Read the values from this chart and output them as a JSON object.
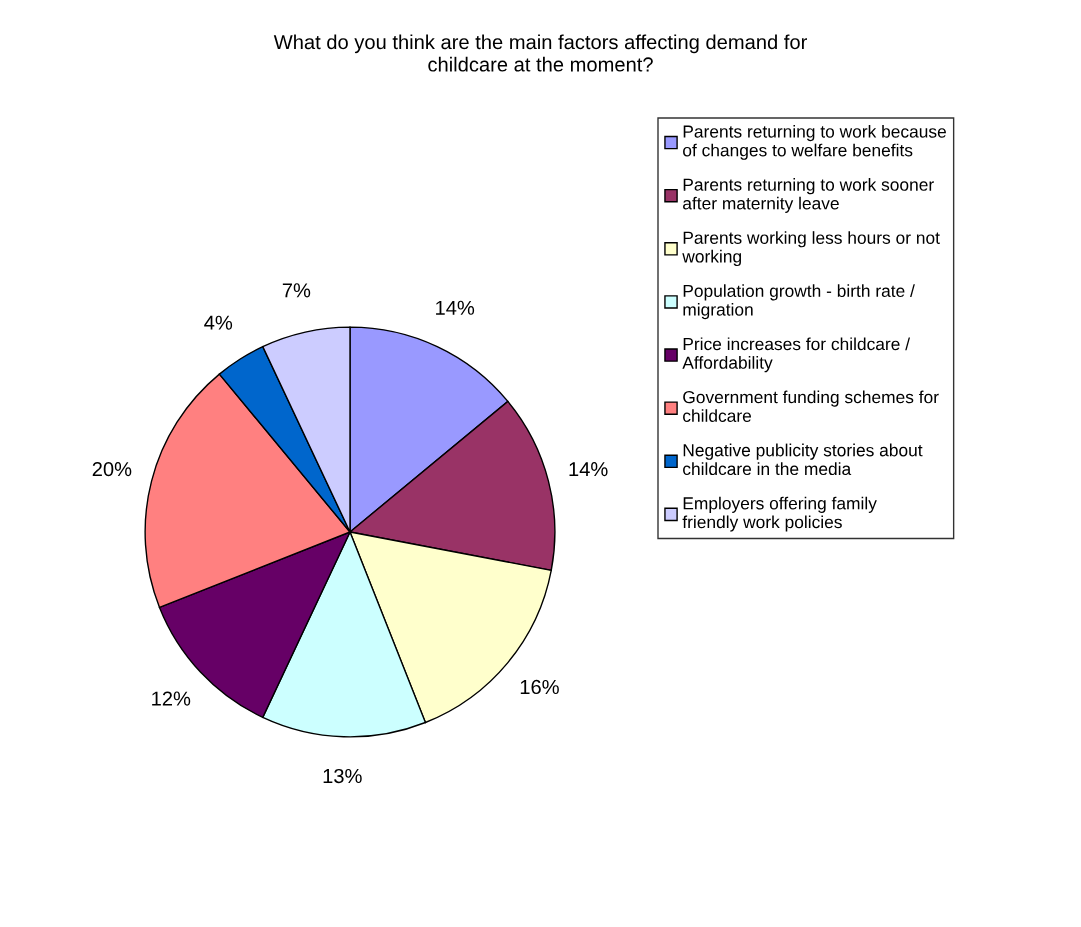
{
  "chart_data": {
    "type": "pie",
    "title": "What do you think are the main factors affecting demand for childcare at the moment?",
    "categories": [
      "Parents returning to work because of changes to welfare benefits",
      "Parents returning to work sooner after maternity leave",
      "Parents working less hours or not working",
      "Population growth - birth rate / migration",
      "Price increases for childcare / Affordability",
      "Government funding schemes for childcare",
      "Negative publicity stories about childcare in the media",
      "Employers offering family friendly work policies"
    ],
    "values": [
      14,
      14,
      16,
      13,
      12,
      20,
      4,
      7
    ],
    "colors": [
      "#9999ff",
      "#993366",
      "#ffffcc",
      "#ccffff",
      "#660066",
      "#ff8080",
      "#0066cc",
      "#ccccff"
    ],
    "value_labels": [
      "14%",
      "14%",
      "16%",
      "13%",
      "12%",
      "20%",
      "4%",
      "7%"
    ],
    "legend": "right"
  }
}
